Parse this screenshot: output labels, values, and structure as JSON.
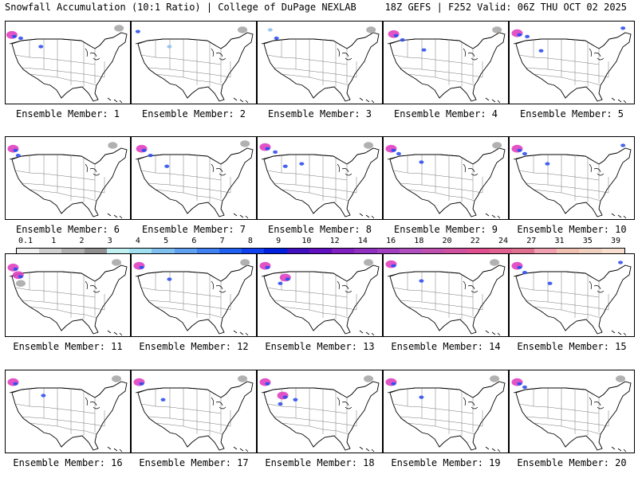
{
  "header": {
    "title": "Snowfall Accumulation (10:1 Ratio) | College of DuPage NEXLAB",
    "run_info": "18Z GEFS | F252 Valid: 06Z THU OCT 02 2025"
  },
  "members": [
    {
      "label": "Ensemble Member: 1",
      "snow": [
        [
          0.05,
          0.16,
          "pink"
        ],
        [
          0.12,
          0.2,
          "blue"
        ],
        [
          0.28,
          0.3,
          "blue"
        ],
        [
          0.9,
          0.08,
          "gray"
        ]
      ]
    },
    {
      "label": "Ensemble Member: 2",
      "snow": [
        [
          0.05,
          0.12,
          "blue"
        ],
        [
          0.3,
          0.3,
          "lt"
        ],
        [
          0.88,
          0.1,
          "gray"
        ]
      ]
    },
    {
      "label": "Ensemble Member: 3",
      "snow": [
        [
          0.1,
          0.1,
          "lt"
        ],
        [
          0.15,
          0.2,
          "blue"
        ],
        [
          0.9,
          0.1,
          "gray"
        ]
      ]
    },
    {
      "label": "Ensemble Member: 4",
      "snow": [
        [
          0.08,
          0.15,
          "pink"
        ],
        [
          0.15,
          0.22,
          "blue"
        ],
        [
          0.32,
          0.34,
          "blue"
        ],
        [
          0.9,
          0.1,
          "gray"
        ]
      ]
    },
    {
      "label": "Ensemble Member: 5",
      "snow": [
        [
          0.06,
          0.14,
          "pink"
        ],
        [
          0.14,
          0.18,
          "blue"
        ],
        [
          0.25,
          0.35,
          "blue"
        ],
        [
          0.9,
          0.08,
          "blue"
        ]
      ]
    },
    {
      "label": "Ensemble Member: 6",
      "snow": [
        [
          0.06,
          0.14,
          "pink"
        ],
        [
          0.1,
          0.22,
          "blue"
        ],
        [
          0.85,
          0.1,
          "gray"
        ]
      ]
    },
    {
      "label": "Ensemble Member: 7",
      "snow": [
        [
          0.08,
          0.14,
          "pink"
        ],
        [
          0.15,
          0.22,
          "blue"
        ],
        [
          0.28,
          0.35,
          "blue"
        ],
        [
          0.9,
          0.08,
          "gray"
        ]
      ]
    },
    {
      "label": "Ensemble Member: 8",
      "snow": [
        [
          0.06,
          0.12,
          "pink"
        ],
        [
          0.14,
          0.18,
          "blue"
        ],
        [
          0.22,
          0.35,
          "blue"
        ],
        [
          0.35,
          0.32,
          "blue"
        ],
        [
          0.88,
          0.1,
          "gray"
        ]
      ]
    },
    {
      "label": "Ensemble Member: 9",
      "snow": [
        [
          0.06,
          0.14,
          "pink"
        ],
        [
          0.12,
          0.2,
          "blue"
        ],
        [
          0.3,
          0.3,
          "blue"
        ],
        [
          0.9,
          0.1,
          "gray"
        ]
      ]
    },
    {
      "label": "Ensemble Member: 10",
      "snow": [
        [
          0.06,
          0.14,
          "pink"
        ],
        [
          0.12,
          0.2,
          "blue"
        ],
        [
          0.3,
          0.32,
          "blue"
        ],
        [
          0.9,
          0.1,
          "blue"
        ]
      ]
    },
    {
      "label": "Ensemble Member: 11",
      "snow": [
        [
          0.06,
          0.16,
          "pink"
        ],
        [
          0.1,
          0.25,
          "pink"
        ],
        [
          0.12,
          0.35,
          "gray"
        ],
        [
          0.88,
          0.1,
          "gray"
        ]
      ]
    },
    {
      "label": "Ensemble Member: 12",
      "snow": [
        [
          0.06,
          0.14,
          "pink"
        ],
        [
          0.3,
          0.3,
          "blue"
        ],
        [
          0.9,
          0.1,
          "gray"
        ]
      ]
    },
    {
      "label": "Ensemble Member: 13",
      "snow": [
        [
          0.06,
          0.14,
          "pink"
        ],
        [
          0.22,
          0.28,
          "pink"
        ],
        [
          0.18,
          0.35,
          "blue"
        ],
        [
          0.88,
          0.1,
          "gray"
        ]
      ]
    },
    {
      "label": "Ensemble Member: 14",
      "snow": [
        [
          0.06,
          0.12,
          "pink"
        ],
        [
          0.3,
          0.32,
          "blue"
        ],
        [
          0.88,
          0.1,
          "gray"
        ]
      ]
    },
    {
      "label": "Ensemble Member: 15",
      "snow": [
        [
          0.06,
          0.14,
          "pink"
        ],
        [
          0.12,
          0.22,
          "blue"
        ],
        [
          0.32,
          0.35,
          "blue"
        ],
        [
          0.88,
          0.1,
          "blue"
        ]
      ]
    },
    {
      "label": "Ensemble Member: 16",
      "snow": [
        [
          0.06,
          0.14,
          "pink"
        ],
        [
          0.3,
          0.3,
          "blue"
        ],
        [
          0.88,
          0.1,
          "gray"
        ]
      ]
    },
    {
      "label": "Ensemble Member: 17",
      "snow": [
        [
          0.06,
          0.14,
          "pink"
        ],
        [
          0.25,
          0.35,
          "blue"
        ],
        [
          0.88,
          0.1,
          "gray"
        ]
      ]
    },
    {
      "label": "Ensemble Member: 18",
      "snow": [
        [
          0.06,
          0.14,
          "pink"
        ],
        [
          0.2,
          0.3,
          "pink"
        ],
        [
          0.18,
          0.4,
          "blue"
        ],
        [
          0.3,
          0.35,
          "blue"
        ],
        [
          0.88,
          0.1,
          "gray"
        ]
      ]
    },
    {
      "label": "Ensemble Member: 19",
      "snow": [
        [
          0.06,
          0.14,
          "pink"
        ],
        [
          0.3,
          0.32,
          "blue"
        ],
        [
          0.88,
          0.1,
          "gray"
        ]
      ]
    },
    {
      "label": "Ensemble Member: 20",
      "snow": [
        [
          0.06,
          0.14,
          "pink"
        ],
        [
          0.12,
          0.2,
          "blue"
        ],
        [
          0.88,
          0.1,
          "gray"
        ]
      ]
    }
  ],
  "snow_colors": {
    "pink": "#e040c0",
    "blue": "#3050f0",
    "lt": "#90c0f0",
    "gray": "#a8a8a8"
  },
  "colorbar": {
    "labels": [
      "0.1",
      "1",
      "2",
      "3",
      "4",
      "5",
      "6",
      "7",
      "8",
      "9",
      "10",
      "12",
      "14",
      "16",
      "18",
      "20",
      "22",
      "24",
      "27",
      "31",
      "35",
      "39"
    ],
    "colors": [
      "#f0f0f0",
      "#d0d0d0",
      "#b0b0b0",
      "#909090",
      "#c0f0f0",
      "#a0e0f0",
      "#80c0f0",
      "#60a0f0",
      "#4080f0",
      "#2060f0",
      "#1040f0",
      "#0020e0",
      "#4010c0",
      "#6010c0",
      "#8020c0",
      "#9030c0",
      "#a040c0",
      "#b050c0",
      "#c050b0",
      "#d050a0",
      "#e05090",
      "#e06090",
      "#e07090",
      "#f0a0b0",
      "#f0c0b0",
      "#f0d0c0",
      "#f8e0d0"
    ]
  }
}
